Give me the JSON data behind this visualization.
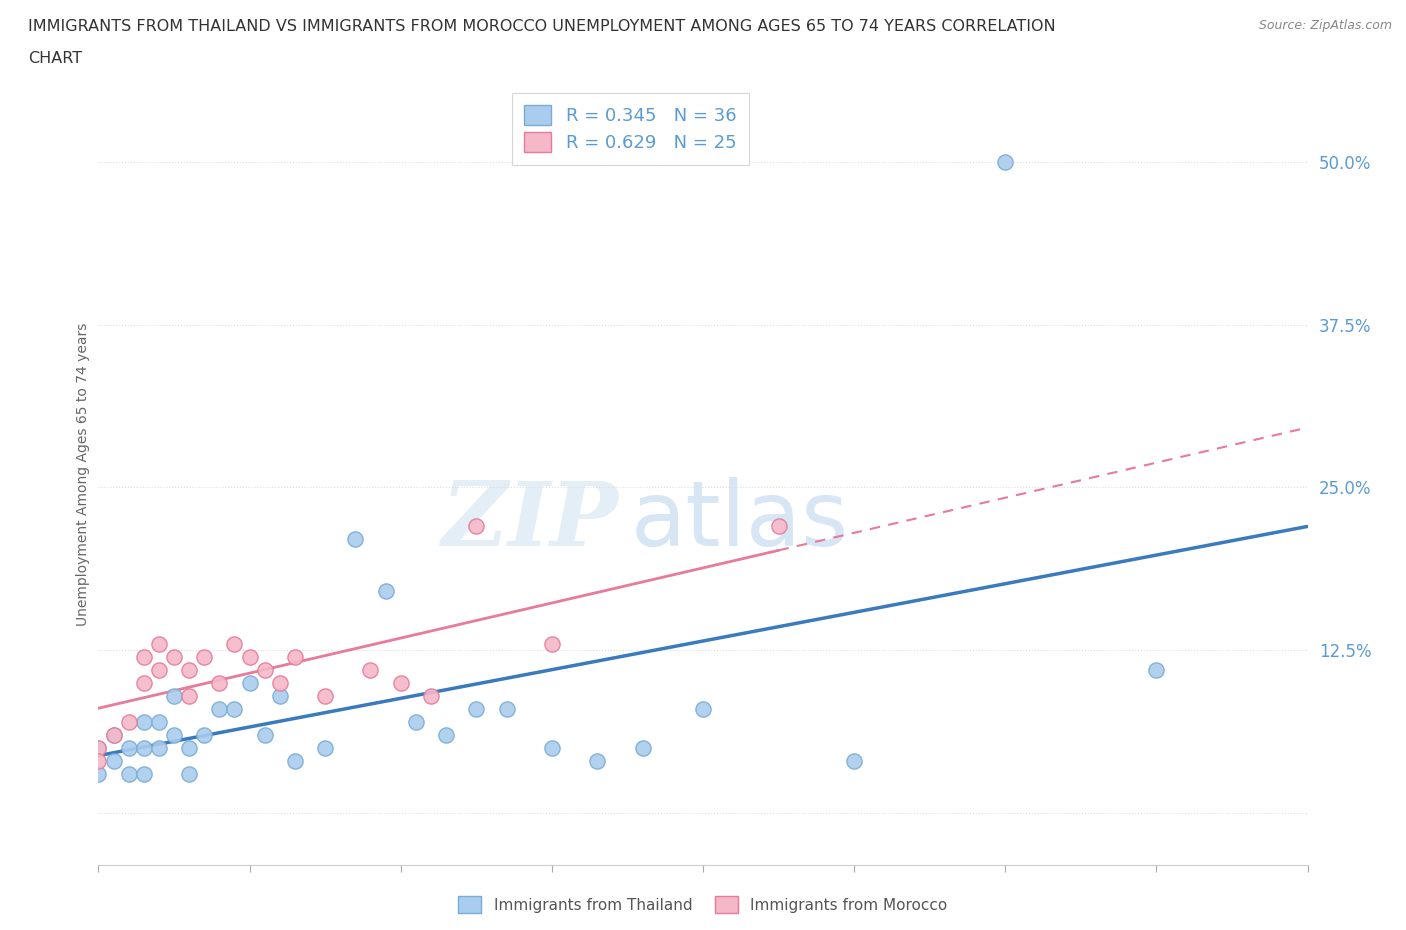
{
  "title_line1": "IMMIGRANTS FROM THAILAND VS IMMIGRANTS FROM MOROCCO UNEMPLOYMENT AMONG AGES 65 TO 74 YEARS CORRELATION",
  "title_line2": "CHART",
  "source": "Source: ZipAtlas.com",
  "ylabel": "Unemployment Among Ages 65 to 74 years",
  "xlim": [
    0.0,
    0.08
  ],
  "ylim": [
    -0.04,
    0.56
  ],
  "yticks": [
    0.0,
    0.125,
    0.25,
    0.375,
    0.5
  ],
  "ytick_labels": [
    "",
    "12.5%",
    "25.0%",
    "37.5%",
    "50.0%"
  ],
  "thailand_color": "#aaccee",
  "thailand_edge": "#7aadd4",
  "morocco_color": "#f4b8c8",
  "morocco_edge": "#e87a9a",
  "line_thailand_color": "#3a7abf",
  "line_morocco_color": "#e87a9a",
  "label_color": "#5b9bd5",
  "R_thailand": 0.345,
  "N_thailand": 36,
  "R_morocco": 0.629,
  "N_morocco": 25,
  "thailand_x": [
    0.0,
    0.0,
    0.001,
    0.001,
    0.002,
    0.002,
    0.003,
    0.003,
    0.003,
    0.004,
    0.004,
    0.005,
    0.005,
    0.006,
    0.006,
    0.007,
    0.008,
    0.009,
    0.01,
    0.011,
    0.012,
    0.013,
    0.015,
    0.017,
    0.019,
    0.021,
    0.023,
    0.025,
    0.027,
    0.03,
    0.033,
    0.036,
    0.04,
    0.05,
    0.06,
    0.07
  ],
  "thailand_y": [
    0.05,
    0.03,
    0.06,
    0.04,
    0.05,
    0.03,
    0.07,
    0.05,
    0.03,
    0.05,
    0.07,
    0.09,
    0.06,
    0.05,
    0.03,
    0.06,
    0.08,
    0.08,
    0.1,
    0.06,
    0.09,
    0.04,
    0.05,
    0.21,
    0.17,
    0.07,
    0.06,
    0.08,
    0.08,
    0.05,
    0.04,
    0.05,
    0.08,
    0.04,
    0.5,
    0.11
  ],
  "morocco_x": [
    0.0,
    0.0,
    0.001,
    0.002,
    0.003,
    0.003,
    0.004,
    0.004,
    0.005,
    0.006,
    0.006,
    0.007,
    0.008,
    0.009,
    0.01,
    0.011,
    0.012,
    0.013,
    0.015,
    0.018,
    0.02,
    0.022,
    0.025,
    0.03,
    0.045
  ],
  "morocco_y": [
    0.05,
    0.04,
    0.06,
    0.07,
    0.12,
    0.1,
    0.13,
    0.11,
    0.12,
    0.11,
    0.09,
    0.12,
    0.1,
    0.13,
    0.12,
    0.11,
    0.1,
    0.12,
    0.09,
    0.11,
    0.1,
    0.09,
    0.22,
    0.13,
    0.22
  ],
  "watermark_zip": "ZIP",
  "watermark_atlas": "atlas",
  "background_color": "#ffffff",
  "grid_color": "#dddddd"
}
